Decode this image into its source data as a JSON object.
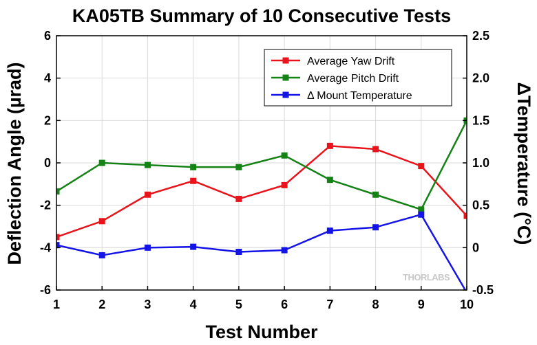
{
  "chart_data": {
    "type": "line",
    "title": "KA05TB Summary of 10 Consecutive Tests",
    "xlabel": "Test Number",
    "ylabel": "Deflection Angle (µrad)",
    "y2label": "ΔTemperature (°C)",
    "x": [
      1,
      2,
      3,
      4,
      5,
      6,
      7,
      8,
      9,
      10
    ],
    "xlim": [
      1,
      10
    ],
    "ylim": [
      -6,
      6
    ],
    "y2lim": [
      -0.5,
      2.5
    ],
    "xticks": [
      "1",
      "2",
      "3",
      "4",
      "5",
      "6",
      "7",
      "8",
      "9",
      "10"
    ],
    "yticks": [
      "6",
      "4",
      "2",
      "0",
      "-2",
      "-4",
      "-6"
    ],
    "y2ticks": [
      "2.5",
      "2.0",
      "1.5",
      "1.0",
      "0.5",
      "0",
      "-0.5"
    ],
    "grid": true,
    "legend_position": "top-right",
    "series": [
      {
        "name": "Average Yaw Drift",
        "axis": "left",
        "color": "#e8141c",
        "values": [
          -3.5,
          -2.75,
          -1.5,
          -0.85,
          -1.7,
          -1.05,
          0.8,
          0.65,
          -0.15,
          -2.5
        ]
      },
      {
        "name": "Average Pitch Drift",
        "axis": "left",
        "color": "#148214",
        "values": [
          -1.35,
          0.0,
          -0.1,
          -0.2,
          -0.2,
          0.35,
          -0.8,
          -1.5,
          -2.2,
          2.0
        ]
      },
      {
        "name": "Δ Mount Temperature",
        "axis": "right",
        "color": "#1414e6",
        "values": [
          0.03,
          -0.09,
          0.0,
          0.01,
          -0.05,
          -0.03,
          0.2,
          0.24,
          0.39,
          -0.53
        ]
      }
    ]
  },
  "logo_text": "THORLABS"
}
